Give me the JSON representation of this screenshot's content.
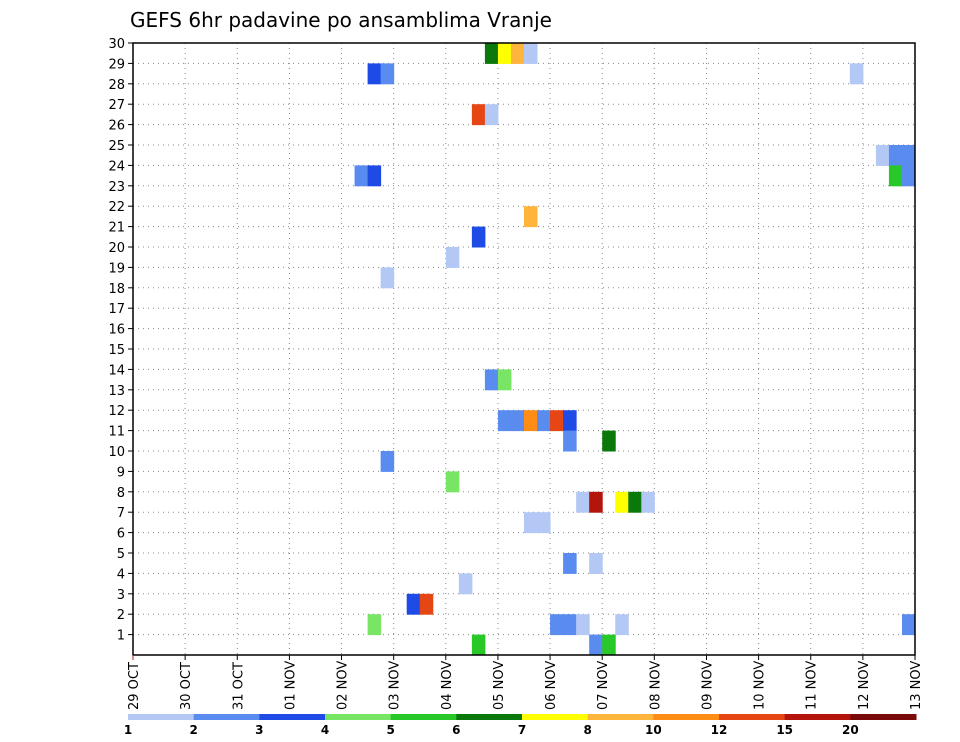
{
  "chart_data": {
    "type": "heatmap",
    "title": "GEFS 6hr padavine po ansamblima Vranje",
    "x_labels": [
      "29 OCT",
      "30 OCT",
      "31 OCT",
      "01 NOV",
      "02 NOV",
      "03 NOV",
      "04 NOV",
      "05 NOV",
      "06 NOV",
      "07 NOV",
      "08 NOV",
      "09 NOV",
      "10 NOV",
      "11 NOV",
      "12 NOV",
      "13 NOV"
    ],
    "y_labels": [
      "1",
      "2",
      "3",
      "4",
      "5",
      "6",
      "7",
      "8",
      "9",
      "10",
      "11",
      "12",
      "13",
      "14",
      "15",
      "16",
      "17",
      "18",
      "19",
      "20",
      "21",
      "22",
      "23",
      "24",
      "25",
      "26",
      "27",
      "28",
      "29",
      "30"
    ],
    "xlim": [
      0,
      60
    ],
    "ylim": [
      0,
      30
    ],
    "grid": true,
    "colorbar": {
      "labels": [
        "1",
        "2",
        "3",
        "4",
        "5",
        "6",
        "7",
        "8",
        "10",
        "12",
        "15",
        "20"
      ],
      "colors": [
        "#b4c8f5",
        "#5a8cf0",
        "#1e4be6",
        "#78e664",
        "#28c828",
        "#0a780a",
        "#ffff00",
        "#ffb43c",
        "#ff8c14",
        "#e64614",
        "#b4140a",
        "#780a0a"
      ]
    },
    "cells": [
      {
        "t": 27,
        "m": 30,
        "c": 6
      },
      {
        "t": 28,
        "m": 30,
        "c": 7
      },
      {
        "t": 29,
        "m": 30,
        "c": 8
      },
      {
        "t": 30,
        "m": 30,
        "c": 1
      },
      {
        "t": 18,
        "m": 29,
        "c": 3
      },
      {
        "t": 19,
        "m": 29,
        "c": 2
      },
      {
        "t": 55,
        "m": 29,
        "c": 1
      },
      {
        "t": 26,
        "m": 27,
        "c": 10
      },
      {
        "t": 27,
        "m": 27,
        "c": 1
      },
      {
        "t": 57,
        "m": 25,
        "c": 1
      },
      {
        "t": 58,
        "m": 25,
        "c": 2
      },
      {
        "t": 59,
        "m": 25,
        "c": 2
      },
      {
        "t": 17,
        "m": 24,
        "c": 2
      },
      {
        "t": 18,
        "m": 24,
        "c": 3
      },
      {
        "t": 58,
        "m": 24,
        "c": 5
      },
      {
        "t": 59,
        "m": 24,
        "c": 2
      },
      {
        "t": 30,
        "m": 22,
        "c": 8
      },
      {
        "t": 26,
        "m": 21,
        "c": 3
      },
      {
        "t": 24,
        "m": 20,
        "c": 1
      },
      {
        "t": 19,
        "m": 19,
        "c": 1
      },
      {
        "t": 27,
        "m": 14,
        "c": 2
      },
      {
        "t": 28,
        "m": 14,
        "c": 4
      },
      {
        "t": 28,
        "m": 12,
        "c": 2
      },
      {
        "t": 29,
        "m": 12,
        "c": 2
      },
      {
        "t": 30,
        "m": 12,
        "c": 9
      },
      {
        "t": 31,
        "m": 12,
        "c": 2
      },
      {
        "t": 32,
        "m": 12,
        "c": 10
      },
      {
        "t": 33,
        "m": 12,
        "c": 3
      },
      {
        "t": 33,
        "m": 11,
        "c": 2
      },
      {
        "t": 36,
        "m": 11,
        "c": 6
      },
      {
        "t": 19,
        "m": 10,
        "c": 2
      },
      {
        "t": 24,
        "m": 9,
        "c": 4
      },
      {
        "t": 34,
        "m": 8,
        "c": 1
      },
      {
        "t": 35,
        "m": 8,
        "c": 11
      },
      {
        "t": 37,
        "m": 8,
        "c": 7
      },
      {
        "t": 38,
        "m": 8,
        "c": 6
      },
      {
        "t": 39,
        "m": 8,
        "c": 1
      },
      {
        "t": 30,
        "m": 7,
        "c": 1
      },
      {
        "t": 31,
        "m": 7,
        "c": 1
      },
      {
        "t": 33,
        "m": 5,
        "c": 2
      },
      {
        "t": 35,
        "m": 5,
        "c": 1
      },
      {
        "t": 25,
        "m": 4,
        "c": 1
      },
      {
        "t": 21,
        "m": 3,
        "c": 3
      },
      {
        "t": 22,
        "m": 3,
        "c": 10
      },
      {
        "t": 18,
        "m": 2,
        "c": 4
      },
      {
        "t": 32,
        "m": 2,
        "c": 2
      },
      {
        "t": 33,
        "m": 2,
        "c": 2
      },
      {
        "t": 34,
        "m": 2,
        "c": 1
      },
      {
        "t": 37,
        "m": 2,
        "c": 1
      },
      {
        "t": 59,
        "m": 2,
        "c": 2
      },
      {
        "t": 26,
        "m": 1,
        "c": 5
      },
      {
        "t": 35,
        "m": 1,
        "c": 2
      },
      {
        "t": 36,
        "m": 1,
        "c": 5
      }
    ]
  }
}
